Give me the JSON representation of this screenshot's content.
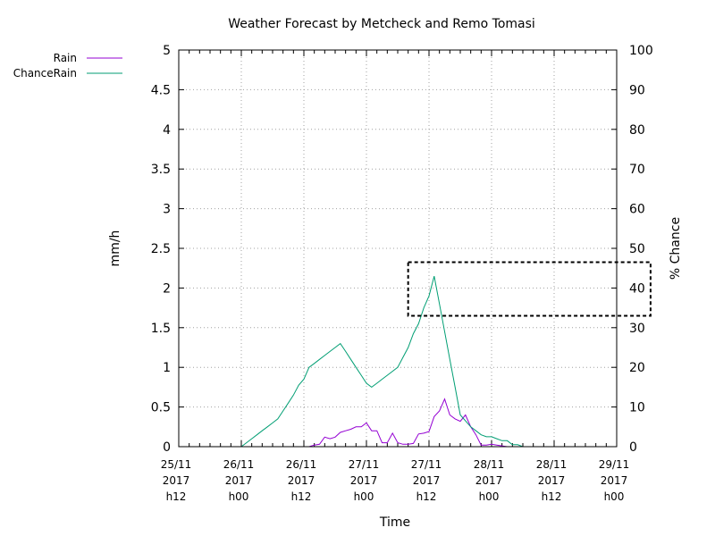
{
  "chart_data": {
    "type": "line",
    "title": "Weather Forecast by Metcheck and Remo Tomasi",
    "xlabel": "Time",
    "ylabel": "mm/h",
    "y2label": "% Chance",
    "xlim": [
      0,
      84
    ],
    "ylim": [
      0,
      5
    ],
    "y2lim": [
      0,
      100
    ],
    "grid": true,
    "legend_position": "top-left-outside",
    "x_ticks": [
      {
        "x": 0,
        "lines": [
          "25/11",
          "2017",
          "h12"
        ]
      },
      {
        "x": 12,
        "lines": [
          "26/11",
          "2017",
          "h00"
        ]
      },
      {
        "x": 24,
        "lines": [
          "26/11",
          "2017",
          "h12"
        ]
      },
      {
        "x": 36,
        "lines": [
          "27/11",
          "2017",
          "h00"
        ]
      },
      {
        "x": 48,
        "lines": [
          "27/11",
          "2017",
          "h12"
        ]
      },
      {
        "x": 60,
        "lines": [
          "28/11",
          "2017",
          "h00"
        ]
      },
      {
        "x": 72,
        "lines": [
          "28/11",
          "2017",
          "h12"
        ]
      },
      {
        "x": 84,
        "lines": [
          "29/11",
          "2017",
          "h00"
        ]
      }
    ],
    "y_ticks": [
      "0",
      "0.5",
      "1",
      "1.5",
      "2",
      "2.5",
      "3",
      "3.5",
      "4",
      "4.5",
      "5"
    ],
    "y2_ticks": [
      "0",
      "10",
      "20",
      "30",
      "40",
      "50",
      "60",
      "70",
      "80",
      "90",
      "100"
    ],
    "series": [
      {
        "name": "Rain",
        "axis": "y",
        "color": "#9400d3",
        "points": [
          [
            25,
            0
          ],
          [
            26,
            0.02
          ],
          [
            27,
            0.03
          ],
          [
            28,
            0.12
          ],
          [
            29,
            0.1
          ],
          [
            30,
            0.12
          ],
          [
            31,
            0.18
          ],
          [
            32,
            0.2
          ],
          [
            33,
            0.22
          ],
          [
            34,
            0.25
          ],
          [
            35,
            0.25
          ],
          [
            36,
            0.3
          ],
          [
            37,
            0.2
          ],
          [
            38,
            0.2
          ],
          [
            39,
            0.05
          ],
          [
            40,
            0.05
          ],
          [
            41,
            0.17
          ],
          [
            42,
            0.05
          ],
          [
            43,
            0.03
          ],
          [
            44,
            0.03
          ],
          [
            45,
            0.04
          ],
          [
            46,
            0.16
          ],
          [
            47,
            0.17
          ],
          [
            48,
            0.19
          ],
          [
            49,
            0.38
          ],
          [
            50,
            0.45
          ],
          [
            51,
            0.6
          ],
          [
            52,
            0.4
          ],
          [
            53,
            0.35
          ],
          [
            54,
            0.32
          ],
          [
            55,
            0.4
          ],
          [
            56,
            0.25
          ],
          [
            57,
            0.15
          ],
          [
            58,
            0.02
          ],
          [
            59,
            0.02
          ],
          [
            60,
            0.03
          ],
          [
            61,
            0.02
          ],
          [
            62,
            0.01
          ],
          [
            63,
            0
          ]
        ]
      },
      {
        "name": "ChanceRain",
        "axis": "y2",
        "color": "#009e73",
        "points": [
          [
            12,
            0
          ],
          [
            13,
            1
          ],
          [
            14,
            2
          ],
          [
            15,
            3
          ],
          [
            16,
            4
          ],
          [
            17,
            5
          ],
          [
            18,
            6
          ],
          [
            19,
            7
          ],
          [
            20,
            9
          ],
          [
            21,
            11
          ],
          [
            22,
            13
          ],
          [
            23,
            15.5
          ],
          [
            24,
            17
          ],
          [
            25,
            20
          ],
          [
            26,
            21
          ],
          [
            27,
            22
          ],
          [
            28,
            23
          ],
          [
            29,
            24
          ],
          [
            30,
            25
          ],
          [
            31,
            26
          ],
          [
            32,
            24
          ],
          [
            33,
            22
          ],
          [
            34,
            20
          ],
          [
            35,
            18
          ],
          [
            36,
            16
          ],
          [
            37,
            15
          ],
          [
            38,
            16
          ],
          [
            39,
            17
          ],
          [
            40,
            18
          ],
          [
            41,
            19
          ],
          [
            42,
            20
          ],
          [
            43,
            22.5
          ],
          [
            44,
            25
          ],
          [
            45,
            28.5
          ],
          [
            46,
            31
          ],
          [
            47,
            35
          ],
          [
            48,
            38
          ],
          [
            49,
            43
          ],
          [
            50,
            36
          ],
          [
            51,
            29
          ],
          [
            52,
            22
          ],
          [
            53,
            15
          ],
          [
            54,
            8
          ],
          [
            55,
            6.5
          ],
          [
            56,
            5
          ],
          [
            57,
            4
          ],
          [
            58,
            3
          ],
          [
            59,
            2.5
          ],
          [
            60,
            2.5
          ],
          [
            61,
            2
          ],
          [
            62,
            1.5
          ],
          [
            63,
            1.5
          ],
          [
            64,
            0.5
          ],
          [
            65,
            0.5
          ],
          [
            66,
            0
          ]
        ]
      }
    ],
    "annotations": [
      {
        "type": "dashed-box",
        "x": [
          44,
          90.5
        ],
        "y2": [
          33,
          46.5
        ]
      }
    ]
  }
}
